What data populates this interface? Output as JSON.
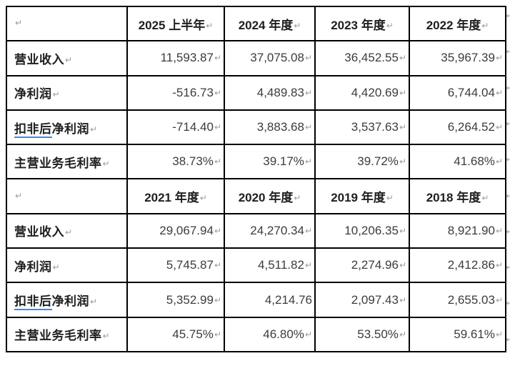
{
  "page": {
    "background": "#ffffff"
  },
  "table": {
    "mark_glyph": "↵",
    "mark_color": "#9b9b9b",
    "border_color": "#000000",
    "header_text_color": "#1e1e1e",
    "number_color": "#3c3c3c",
    "grammar_underline_color": "#4f86c6",
    "rows": [
      {
        "type": "header",
        "cells": [
          "",
          "2025 上半年",
          "2024 年度",
          "2023 年度",
          "2022 年度"
        ]
      },
      {
        "type": "data",
        "label": "营业收入",
        "values": [
          "11,593.87",
          "37,075.08",
          "36,452.55",
          "35,967.39"
        ]
      },
      {
        "type": "data",
        "label": "净利润",
        "values": [
          "-516.73",
          "4,489.83",
          "4,420.69",
          "6,744.04"
        ]
      },
      {
        "type": "data",
        "label_head": "扣非后",
        "label_tail": "净利润",
        "values": [
          "-714.40",
          "3,883.68",
          "3,537.63",
          "6,264.52"
        ]
      },
      {
        "type": "data",
        "label": "主营业务毛利率",
        "values": [
          "38.73%",
          "39.17%",
          "39.72%",
          "41.68%"
        ]
      },
      {
        "type": "header",
        "cells": [
          "",
          "2021 年度",
          "2020 年度",
          "2019 年度",
          "2018 年度"
        ]
      },
      {
        "type": "data",
        "label": "营业收入",
        "values": [
          "29,067.94",
          "24,270.34",
          "10,206.35",
          "8,921.90"
        ]
      },
      {
        "type": "data",
        "label": "净利润",
        "values": [
          "5,745.87",
          "4,511.82",
          "2,274.96",
          "2,412.86"
        ]
      },
      {
        "type": "data",
        "label_head": "扣非后",
        "label_tail": "净利润",
        "values": [
          "5,352.99",
          "4,214.76",
          "2,097.43",
          "2,655.03"
        ],
        "no_mark": [
          1
        ]
      },
      {
        "type": "data",
        "label": "主营业务毛利率",
        "values": [
          "45.75%",
          "46.80%",
          "53.50%",
          "59.61%"
        ]
      }
    ]
  }
}
